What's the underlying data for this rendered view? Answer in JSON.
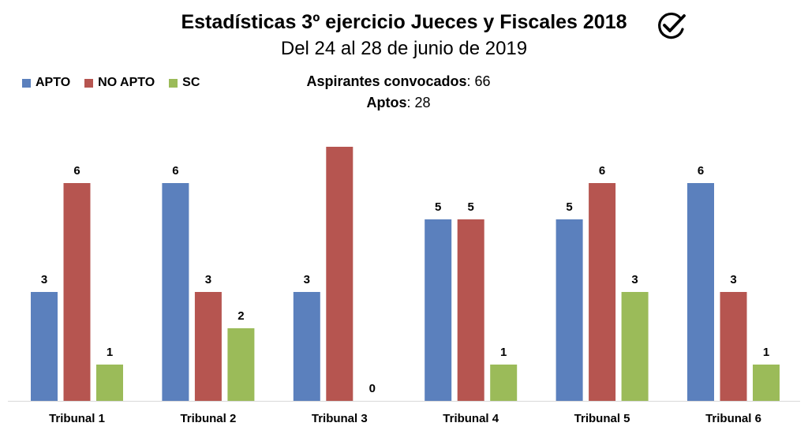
{
  "chart_data": {
    "type": "bar",
    "title": "Estadísticas 3º ejercicio Jueces y Fiscales 2018",
    "subtitle": "Del 24 al 28 de junio de 2019",
    "categories": [
      "Tribunal 1",
      "Tribunal 2",
      "Tribunal 3",
      "Tribunal 4",
      "Tribunal 5",
      "Tribunal 6"
    ],
    "series": [
      {
        "name": "APTO",
        "color": "#5b80bd",
        "values": [
          3,
          6,
          3,
          5,
          5,
          6
        ]
      },
      {
        "name": "NO APTO",
        "color": "#b65550",
        "values": [
          6,
          3,
          7,
          5,
          6,
          3
        ]
      },
      {
        "name": "SC",
        "color": "#9bbb59",
        "values": [
          1,
          2,
          0,
          1,
          3,
          1
        ]
      }
    ],
    "data_labels_shown": [
      [
        true,
        true,
        true,
        true,
        true,
        true
      ],
      [
        true,
        true,
        false,
        true,
        true,
        true
      ],
      [
        true,
        true,
        true,
        true,
        true,
        true
      ]
    ],
    "ylim": [
      0,
      7
    ],
    "grid": false,
    "legend_position": "top-left"
  },
  "info": {
    "convocados_label": "Aspirantes convocados",
    "convocados_value": ": 66",
    "aptos_label": "Aptos",
    "aptos_value": ": 28"
  },
  "icons": {
    "header_icon": "check-circle-icon"
  }
}
